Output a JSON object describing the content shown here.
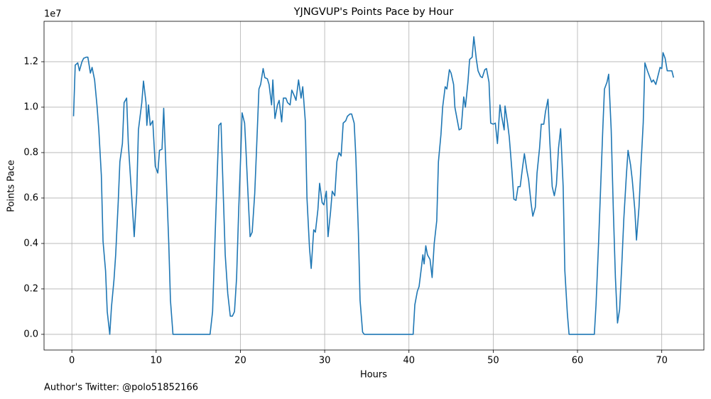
{
  "chart_data": {
    "type": "line",
    "title": "YJNGVUP's Points Pace by Hour",
    "x_label": "Hours",
    "y_label": "Points Pace",
    "y_offset_label": "1e7",
    "footnote": "Author's Twitter: @polo51852166",
    "xlim": [
      -3.3,
      75.0
    ],
    "ylim": [
      -0.069,
      1.378
    ],
    "xticks": [
      0,
      10,
      20,
      30,
      40,
      50,
      60,
      70
    ],
    "yticks": [
      {
        "value": 0,
        "label": "0.0"
      },
      0.2,
      0.4,
      0.6,
      0.8,
      {
        "value": 1,
        "label": "1.0"
      },
      1.2
    ],
    "grid": true,
    "x": [
      0.2,
      0.4,
      0.7,
      0.9,
      1.2,
      1.4,
      1.7,
      1.9,
      2.2,
      2.4,
      2.7,
      3.0,
      3.2,
      3.5,
      3.7,
      4.0,
      4.2,
      4.5,
      4.7,
      5.0,
      5.2,
      5.5,
      5.7,
      6.0,
      6.2,
      6.5,
      6.7,
      7.2,
      7.4,
      7.7,
      7.9,
      8.3,
      8.5,
      8.8,
      8.9,
      9.1,
      9.3,
      9.6,
      9.9,
      10.2,
      10.4,
      10.7,
      10.9,
      11.2,
      11.5,
      11.7,
      12.0,
      16.4,
      16.7,
      16.95,
      17.2,
      17.45,
      17.7,
      18.0,
      18.2,
      18.5,
      18.8,
      19.05,
      19.3,
      19.55,
      19.8,
      20.05,
      20.2,
      20.5,
      20.65,
      20.9,
      21.15,
      21.4,
      21.7,
      21.9,
      22.2,
      22.4,
      22.7,
      22.9,
      23.2,
      23.4,
      23.7,
      23.85,
      24.1,
      24.4,
      24.6,
      24.9,
      25.1,
      25.4,
      25.6,
      25.9,
      26.1,
      26.4,
      26.6,
      26.9,
      27.2,
      27.4,
      27.7,
      27.9,
      28.2,
      28.4,
      28.7,
      28.9,
      29.2,
      29.4,
      29.7,
      29.9,
      30.2,
      30.4,
      30.7,
      30.9,
      31.2,
      31.45,
      31.7,
      31.95,
      32.2,
      32.5,
      32.7,
      33.0,
      33.2,
      33.5,
      33.7,
      34.0,
      34.2,
      34.5,
      34.7,
      40.5,
      40.7,
      41.0,
      41.2,
      41.5,
      41.65,
      41.8,
      42.0,
      42.2,
      42.5,
      42.75,
      43.0,
      43.3,
      43.5,
      43.8,
      44.0,
      44.3,
      44.5,
      44.8,
      45.0,
      45.3,
      45.45,
      45.7,
      45.95,
      46.2,
      46.5,
      46.7,
      47.0,
      47.2,
      47.5,
      47.7,
      48.0,
      48.2,
      48.5,
      48.7,
      49.0,
      49.2,
      49.5,
      49.7,
      50.0,
      50.25,
      50.5,
      50.8,
      51.0,
      51.3,
      51.4,
      51.7,
      51.9,
      52.2,
      52.45,
      52.7,
      52.95,
      53.2,
      53.5,
      53.7,
      54.0,
      54.2,
      54.5,
      54.7,
      55.0,
      55.2,
      55.5,
      55.7,
      56.0,
      56.2,
      56.5,
      56.7,
      57.0,
      57.25,
      57.5,
      57.75,
      58.0,
      58.3,
      58.5,
      58.8,
      59.0,
      62.0,
      62.2,
      62.5,
      62.7,
      63.0,
      63.2,
      63.5,
      63.7,
      64.0,
      64.25,
      64.5,
      64.75,
      65.0,
      65.25,
      65.5,
      65.8,
      66.0,
      66.3,
      66.5,
      66.8,
      67.0,
      67.3,
      67.5,
      67.8,
      68.0,
      68.3,
      68.5,
      68.8,
      69.0,
      69.3,
      69.5,
      69.8,
      70.0,
      70.15,
      70.4,
      70.65,
      70.9,
      71.2,
      71.4
    ],
    "series": [
      {
        "name": "Points Pace",
        "color": "#1f77b4",
        "values": [
          0.96,
          1.185,
          1.195,
          1.16,
          1.2,
          1.215,
          1.22,
          1.22,
          1.15,
          1.175,
          1.12,
          1.0,
          0.9,
          0.7,
          0.41,
          0.28,
          0.1,
          0.0,
          0.12,
          0.24,
          0.35,
          0.58,
          0.76,
          0.84,
          1.02,
          1.04,
          0.84,
          0.55,
          0.43,
          0.62,
          0.9,
          1.02,
          1.115,
          1.02,
          0.92,
          1.01,
          0.92,
          0.94,
          0.74,
          0.71,
          0.81,
          0.815,
          0.995,
          0.7,
          0.4,
          0.15,
          0.0,
          0.0,
          0.1,
          0.38,
          0.65,
          0.92,
          0.93,
          0.58,
          0.35,
          0.18,
          0.08,
          0.08,
          0.1,
          0.25,
          0.55,
          0.8,
          0.975,
          0.93,
          0.82,
          0.62,
          0.43,
          0.45,
          0.62,
          0.8,
          1.08,
          1.1,
          1.17,
          1.13,
          1.125,
          1.1,
          1.01,
          1.12,
          0.95,
          1.01,
          1.03,
          0.935,
          1.04,
          1.04,
          1.02,
          1.01,
          1.075,
          1.05,
          1.03,
          1.12,
          1.04,
          1.09,
          0.94,
          0.6,
          0.38,
          0.29,
          0.46,
          0.45,
          0.55,
          0.665,
          0.58,
          0.57,
          0.63,
          0.43,
          0.54,
          0.63,
          0.61,
          0.76,
          0.8,
          0.785,
          0.93,
          0.94,
          0.96,
          0.97,
          0.97,
          0.93,
          0.78,
          0.45,
          0.15,
          0.01,
          0.0,
          0.0,
          0.13,
          0.19,
          0.21,
          0.3,
          0.35,
          0.31,
          0.39,
          0.35,
          0.33,
          0.25,
          0.4,
          0.5,
          0.76,
          0.88,
          1.0,
          1.09,
          1.08,
          1.165,
          1.15,
          1.1,
          1.0,
          0.95,
          0.9,
          0.905,
          1.045,
          1.0,
          1.11,
          1.21,
          1.22,
          1.31,
          1.21,
          1.16,
          1.135,
          1.13,
          1.165,
          1.17,
          1.11,
          0.93,
          0.925,
          0.93,
          0.84,
          1.01,
          0.96,
          0.9,
          1.005,
          0.93,
          0.87,
          0.73,
          0.595,
          0.59,
          0.65,
          0.65,
          0.74,
          0.795,
          0.72,
          0.68,
          0.575,
          0.52,
          0.56,
          0.71,
          0.82,
          0.925,
          0.925,
          0.98,
          1.035,
          0.86,
          0.65,
          0.61,
          0.66,
          0.82,
          0.905,
          0.65,
          0.28,
          0.09,
          0.0,
          0.0,
          0.13,
          0.4,
          0.6,
          0.9,
          1.08,
          1.11,
          1.145,
          0.9,
          0.55,
          0.25,
          0.05,
          0.11,
          0.3,
          0.51,
          0.7,
          0.81,
          0.745,
          0.68,
          0.55,
          0.415,
          0.56,
          0.72,
          0.93,
          1.195,
          1.16,
          1.14,
          1.11,
          1.12,
          1.1,
          1.13,
          1.175,
          1.17,
          1.24,
          1.215,
          1.16,
          1.16,
          1.16,
          1.13
        ]
      }
    ]
  }
}
